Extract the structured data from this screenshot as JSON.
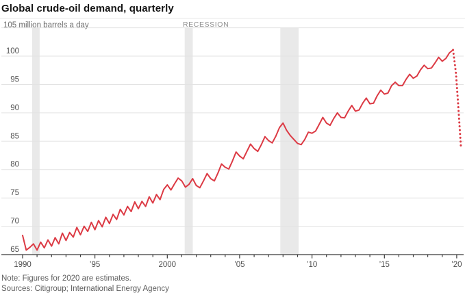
{
  "title": "Global crude-oil demand, quarterly",
  "unit_label": "105 million barrels a day",
  "recession_label": "RECESSION",
  "note": "Note: Figures for 2020 are estimates.",
  "sources": "Sources: Citigroup; International Energy Agency",
  "colors": {
    "line_red": "#dc3a44",
    "recession_band": "#e9e9e9",
    "gridline": "#e3e3e3",
    "axis": "#3a3a3a",
    "tick_text": "#4d4d4d"
  },
  "chart_data": {
    "type": "line",
    "title": "Global crude-oil demand, quarterly",
    "ylabel": "million barrels a day",
    "ylim": [
      65,
      105
    ],
    "xlim": [
      1990,
      2020.6
    ],
    "grid": "horizontal",
    "legend_position": "none",
    "y_ticks": [
      65,
      70,
      75,
      80,
      85,
      90,
      95,
      100
    ],
    "y_top_tick_label": "105",
    "x_ticks": [
      {
        "year": 1990,
        "label": "1990"
      },
      {
        "year": 1995,
        "label": "’95"
      },
      {
        "year": 2000,
        "label": "2000"
      },
      {
        "year": 2005,
        "label": "’05"
      },
      {
        "year": 2010,
        "label": "’10"
      },
      {
        "year": 2015,
        "label": "’15"
      },
      {
        "year": 2020,
        "label": "’20"
      }
    ],
    "minor_x_ticks_every_year": true,
    "recession_bands": [
      [
        1990.66,
        1991.18
      ],
      [
        2001.2,
        2001.76
      ],
      [
        2007.81,
        2009.08
      ]
    ],
    "series": [
      {
        "name": "Global crude-oil demand (actual, quarterly)",
        "style": "solid",
        "color": "#dc3a44",
        "start_year": 1990,
        "interval_years": 0.25,
        "values": [
          68.4,
          65.8,
          66.3,
          66.9,
          65.8,
          67.2,
          66.2,
          67.6,
          66.5,
          68.0,
          66.9,
          68.8,
          67.5,
          68.9,
          68.1,
          69.8,
          68.5,
          70.0,
          69.1,
          70.7,
          69.4,
          71.0,
          69.9,
          71.6,
          70.5,
          72.1,
          71.2,
          73.0,
          72.0,
          73.5,
          72.6,
          74.3,
          73.1,
          74.4,
          73.5,
          75.2,
          74.1,
          75.6,
          74.7,
          76.5,
          77.3,
          76.4,
          77.5,
          78.5,
          78.0,
          76.9,
          77.4,
          78.4,
          77.2,
          76.8,
          78.0,
          79.3,
          78.4,
          78.0,
          79.4,
          81.0,
          80.4,
          80.1,
          81.5,
          83.1,
          82.4,
          81.9,
          83.2,
          84.5,
          83.7,
          83.2,
          84.4,
          85.8,
          85.1,
          84.7,
          85.9,
          87.4,
          88.2,
          86.9,
          86.0,
          85.3,
          84.6,
          84.4,
          85.3,
          86.6,
          86.4,
          86.8,
          88.0,
          89.2,
          88.2,
          87.8,
          89.0,
          90.0,
          89.2,
          89.1,
          90.3,
          91.3,
          90.3,
          90.5,
          91.7,
          92.6,
          91.6,
          91.7,
          93.0,
          94.0,
          93.3,
          93.5,
          94.8,
          95.4,
          94.8,
          94.8,
          95.9,
          96.8,
          96.1,
          96.5,
          97.6,
          98.4,
          97.8,
          97.9,
          98.8,
          99.8,
          99.1,
          99.6,
          100.6,
          101.1
        ]
      },
      {
        "name": "2020 estimates",
        "style": "dotted",
        "color": "#dc3a44",
        "points": [
          [
            2019.75,
            101.1
          ],
          [
            2019.95,
            97.0
          ],
          [
            2020.1,
            91.5
          ],
          [
            2020.3,
            83.7
          ]
        ]
      }
    ]
  }
}
